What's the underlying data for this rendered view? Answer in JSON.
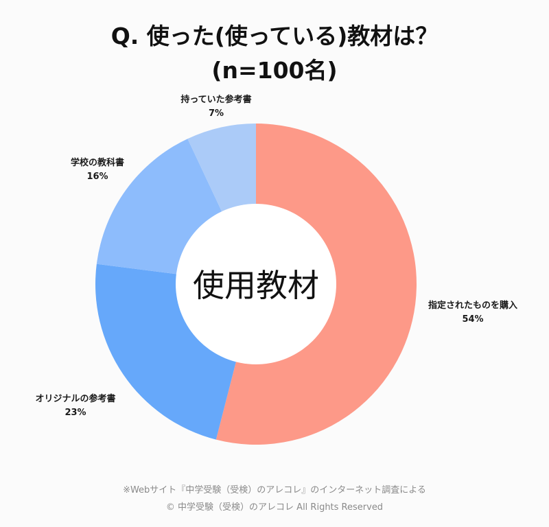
{
  "chart_data": {
    "type": "pie",
    "donut": true,
    "title_line1": "Q. 使った(使っている)教材は？",
    "title_line2": "(n=100名)",
    "center_label": "使用教材",
    "slices": [
      {
        "label": "指定されたものを購入",
        "value": 54,
        "display": "54%",
        "color": "#fd9988"
      },
      {
        "label": "オリジナルの参考書",
        "value": 23,
        "display": "23%",
        "color": "#66a8fa"
      },
      {
        "label": "学校の教科書",
        "value": 16,
        "display": "16%",
        "color": "#8dbcfc"
      },
      {
        "label": "持っていた参考書",
        "value": 7,
        "display": "7%",
        "color": "#abcbf8"
      }
    ]
  },
  "footer": {
    "source": "※Webサイト『中学受験（受検）のアレコレ』のインターネット調査による",
    "copyright": "© 中学受験（受検）のアレコレ All Rights Reserved"
  }
}
